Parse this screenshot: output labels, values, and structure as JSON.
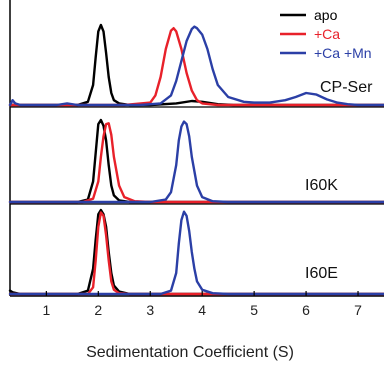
{
  "chart_data": {
    "type": "line",
    "xlabel": "Sedimentation Coefficient (S)",
    "xlim": [
      0.3,
      7.5
    ],
    "x_ticks": [
      "1",
      "2",
      "3",
      "4",
      "5",
      "6",
      "7"
    ],
    "legend": {
      "placement": "top-right",
      "entries": [
        {
          "name": "apo",
          "color": "#000000"
        },
        {
          "name": "+Ca",
          "color": "#e8212a"
        },
        {
          "name": "+Ca +Mn",
          "color": "#2b3fa6"
        }
      ]
    },
    "panels": [
      {
        "label": "CP-Ser",
        "series": [
          {
            "name": "apo",
            "color": "#000000",
            "x": [
              0.3,
              1.6,
              1.8,
              1.9,
              1.95,
              2.0,
              2.05,
              2.1,
              2.15,
              2.2,
              2.25,
              2.3,
              2.4,
              2.6,
              3.0,
              3.5,
              3.8,
              4.0,
              4.3,
              4.6,
              5.0,
              6.0,
              7.0,
              7.5
            ],
            "y": [
              0,
              0,
              0.04,
              0.25,
              0.6,
              0.92,
              1.0,
              0.92,
              0.65,
              0.35,
              0.15,
              0.06,
              0.02,
              0,
              0,
              0.02,
              0.05,
              0.04,
              0.01,
              0,
              0,
              0,
              0,
              0
            ]
          },
          {
            "name": "+Ca",
            "color": "#e8212a",
            "x": [
              0.3,
              2.5,
              3.0,
              3.1,
              3.2,
              3.3,
              3.4,
              3.45,
              3.5,
              3.6,
              3.7,
              3.8,
              3.9,
              4.0,
              4.3,
              7.5
            ],
            "y": [
              0,
              0,
              0.03,
              0.12,
              0.35,
              0.7,
              0.93,
              0.96,
              0.92,
              0.7,
              0.4,
              0.18,
              0.06,
              0.02,
              0,
              0
            ]
          },
          {
            "name": "+Ca +Mn",
            "color": "#2b3fa6",
            "x": [
              0.3,
              0.35,
              0.4,
              0.5,
              1.2,
              1.4,
              1.6,
              2.8,
              3.2,
              3.4,
              3.5,
              3.6,
              3.7,
              3.8,
              3.85,
              3.9,
              4.0,
              4.1,
              4.2,
              4.3,
              4.5,
              4.8,
              5.0,
              5.3,
              5.6,
              5.8,
              6.0,
              6.2,
              6.4,
              6.6,
              6.8,
              7.0,
              7.5
            ],
            "y": [
              0,
              0.06,
              0.02,
              0,
              0,
              0.02,
              0,
              0,
              0.02,
              0.12,
              0.3,
              0.55,
              0.8,
              0.95,
              0.98,
              0.96,
              0.88,
              0.7,
              0.45,
              0.25,
              0.1,
              0.04,
              0.03,
              0.03,
              0.06,
              0.1,
              0.15,
              0.13,
              0.07,
              0.03,
              0.01,
              0,
              0
            ]
          }
        ]
      },
      {
        "label": "I60K",
        "series": [
          {
            "name": "apo",
            "color": "#000000",
            "x": [
              0.3,
              1.6,
              1.8,
              1.9,
              1.95,
              2.0,
              2.05,
              2.1,
              2.15,
              2.2,
              2.25,
              2.3,
              2.4,
              2.6,
              3.0,
              7.5
            ],
            "y": [
              0,
              0,
              0.03,
              0.25,
              0.6,
              0.95,
              1.0,
              0.93,
              0.75,
              0.45,
              0.2,
              0.08,
              0.02,
              0,
              0,
              0
            ]
          },
          {
            "name": "+Ca",
            "color": "#e8212a",
            "x": [
              0.3,
              1.7,
              1.9,
              2.0,
              2.05,
              2.1,
              2.15,
              2.2,
              2.25,
              2.3,
              2.4,
              2.5,
              2.7,
              3.0,
              7.5
            ],
            "y": [
              0,
              0,
              0.04,
              0.25,
              0.55,
              0.8,
              0.95,
              0.96,
              0.82,
              0.55,
              0.2,
              0.06,
              0.01,
              0,
              0
            ]
          },
          {
            "name": "+Ca +Mn",
            "color": "#2b3fa6",
            "x": [
              0.3,
              3.0,
              3.3,
              3.4,
              3.5,
              3.55,
              3.6,
              3.65,
              3.7,
              3.75,
              3.8,
              3.9,
              4.0,
              4.2,
              4.5,
              7.5
            ],
            "y": [
              0,
              0,
              0.03,
              0.12,
              0.45,
              0.75,
              0.92,
              0.98,
              0.95,
              0.8,
              0.55,
              0.2,
              0.06,
              0.01,
              0,
              0
            ]
          }
        ]
      },
      {
        "label": "I60E",
        "series": [
          {
            "name": "apo",
            "color": "#000000",
            "x": [
              0.3,
              0.35,
              0.5,
              1.6,
              1.8,
              1.9,
              1.95,
              2.0,
              2.05,
              2.1,
              2.15,
              2.2,
              2.25,
              2.3,
              2.4,
              2.6,
              3.0,
              7.5
            ],
            "y": [
              0.04,
              0.02,
              0,
              0,
              0.04,
              0.3,
              0.65,
              0.95,
              1.0,
              0.95,
              0.8,
              0.5,
              0.25,
              0.1,
              0.03,
              0,
              0,
              0
            ]
          },
          {
            "name": "+Ca",
            "color": "#e8212a",
            "x": [
              0.3,
              1.8,
              1.9,
              1.95,
              2.0,
              2.05,
              2.1,
              2.15,
              2.2,
              2.25,
              2.3,
              2.4,
              2.6,
              7.5
            ],
            "y": [
              0,
              0,
              0.08,
              0.4,
              0.8,
              0.97,
              0.93,
              0.7,
              0.4,
              0.15,
              0.05,
              0.01,
              0,
              0
            ]
          },
          {
            "name": "+Ca +Mn",
            "color": "#2b3fa6",
            "x": [
              0.3,
              3.2,
              3.4,
              3.5,
              3.55,
              3.6,
              3.65,
              3.7,
              3.75,
              3.8,
              3.85,
              3.9,
              4.0,
              4.2,
              4.5,
              7.5
            ],
            "y": [
              0,
              0,
              0.04,
              0.25,
              0.6,
              0.88,
              0.98,
              0.93,
              0.75,
              0.5,
              0.3,
              0.15,
              0.05,
              0.01,
              0,
              0
            ]
          }
        ]
      }
    ]
  }
}
